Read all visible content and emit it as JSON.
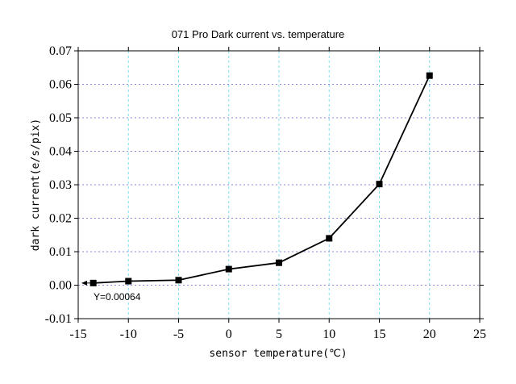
{
  "chart_data": {
    "type": "line",
    "title": "071 Pro Dark current vs. temperature",
    "xlabel": "sensor temperature(℃)",
    "ylabel": "dark current(e/s/pix)",
    "xlim": [
      -15,
      25
    ],
    "ylim": [
      -0.01,
      0.07
    ],
    "x_ticks": [
      -15,
      -10,
      -5,
      0,
      5,
      10,
      15,
      20,
      25
    ],
    "x_tick_labels": [
      "-15",
      "-10",
      "-5",
      "0",
      "5",
      "10",
      "15",
      "20",
      "25"
    ],
    "y_ticks": [
      -0.01,
      0.0,
      0.01,
      0.02,
      0.03,
      0.04,
      0.05,
      0.06,
      0.07
    ],
    "y_tick_labels": [
      "-0.01",
      "0.00",
      "0.01",
      "0.02",
      "0.03",
      "0.04",
      "0.05",
      "0.06",
      "0.07"
    ],
    "grid": true,
    "series": [
      {
        "x": [
          -13.5,
          -10,
          -5,
          0,
          5,
          10,
          15,
          20
        ],
        "y": [
          0.00064,
          0.0012,
          0.0015,
          0.0048,
          0.0067,
          0.014,
          0.0302,
          0.0626
        ],
        "marker": "square",
        "color": "#000000"
      }
    ],
    "annotations": [
      {
        "text": "Y=0.00064",
        "x": -13.5,
        "y": 0.00064,
        "arrow": true
      }
    ]
  }
}
